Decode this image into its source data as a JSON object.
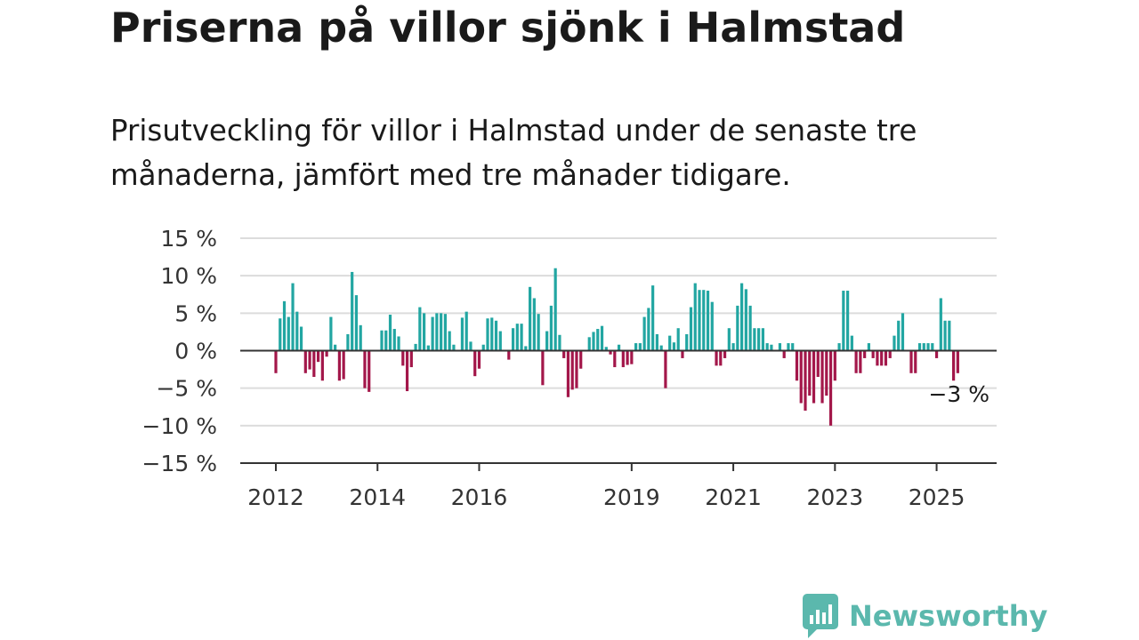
{
  "title": "Priserna på villor sjönk i Halmstad",
  "subtitle": "Prisutveckling för villor i Halmstad under de senaste tre månaderna, jämfört med tre månader tidigare.",
  "brand": {
    "name": "Newsworthy",
    "color": "#5bb8ad"
  },
  "colors": {
    "positive": "#22a6a2",
    "negative": "#a3174a",
    "grid": "#dcdcdc",
    "axis": "#333333"
  },
  "chart_data": {
    "type": "bar",
    "ylabel": "",
    "xlabel": "",
    "ylim": [
      -15,
      15
    ],
    "yticks": [
      15,
      10,
      5,
      0,
      -5,
      -10,
      -15
    ],
    "ytick_labels": [
      "15 %",
      "10 %",
      "5 %",
      "0 %",
      "−5 %",
      "−10 %",
      "−15 %"
    ],
    "xticks": [
      2012,
      2014,
      2016,
      2019,
      2021,
      2023,
      2025
    ],
    "xtick_labels": [
      "2012",
      "2014",
      "2016",
      "2019",
      "2021",
      "2023",
      "2025"
    ],
    "x_start": "2012-01",
    "x_end": "2025-07",
    "grid": true,
    "last_value_label": "−3 %",
    "values": [
      -3,
      4.3,
      6.6,
      4.5,
      9,
      5.2,
      3.2,
      -3,
      -2.5,
      -3.5,
      -1.5,
      -4,
      -0.8,
      4.5,
      0.8,
      -4,
      -3.8,
      2.2,
      10.5,
      7.4,
      3.4,
      -5,
      -5.5,
      0,
      0,
      2.7,
      2.7,
      4.8,
      2.9,
      1.9,
      -2,
      -5.4,
      -2.2,
      0.9,
      5.8,
      5,
      0.7,
      4.5,
      5,
      5,
      4.9,
      2.6,
      0.8,
      0,
      4.4,
      5.2,
      1.2,
      -3.4,
      -2.4,
      0.8,
      4.3,
      4.4,
      4,
      2.6,
      0,
      -1.2,
      3,
      3.6,
      3.6,
      0.6,
      8.5,
      7,
      4.9,
      -4.6,
      2.6,
      6,
      11,
      2.1,
      -1,
      -6.2,
      -5.2,
      -5,
      -2.4,
      0,
      1.8,
      2.5,
      2.9,
      3.3,
      0.5,
      -0.5,
      -2.2,
      0.8,
      -2.2,
      -1.9,
      -1.8,
      1,
      1,
      4.5,
      5.7,
      8.7,
      2.2,
      0.7,
      -5,
      2,
      1.1,
      3,
      -1,
      2.2,
      5.8,
      9,
      8.1,
      8.1,
      8,
      6.5,
      -2,
      -2,
      -1,
      3,
      1,
      6,
      9,
      8.2,
      6,
      3,
      3,
      3,
      1,
      0.8,
      0,
      1,
      -1,
      1,
      1,
      -4,
      -7,
      -8,
      -6,
      -7,
      -3.5,
      -7,
      -6,
      -10,
      -4,
      1,
      8,
      8,
      2,
      -3,
      -3,
      -1,
      1,
      -1,
      -2,
      -2,
      -2,
      -1,
      2,
      4,
      5,
      0,
      -3,
      -3,
      1,
      1,
      1,
      1,
      -1,
      7,
      4,
      4,
      -4,
      -3
    ]
  }
}
